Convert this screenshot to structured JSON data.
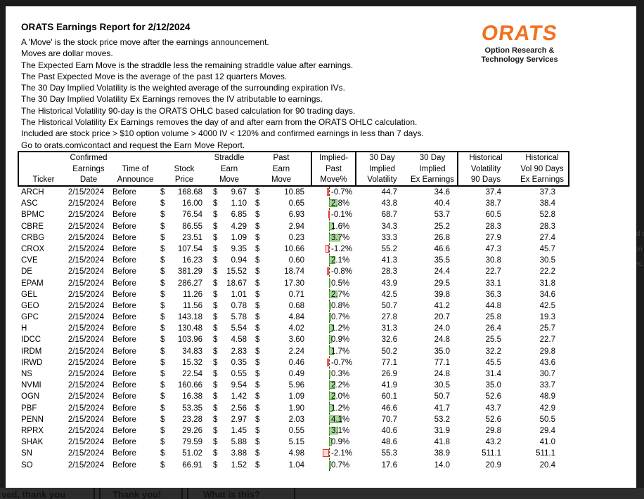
{
  "report": {
    "title": "ORATS Earnings Report for 2/12/2024",
    "intro_lines": [
      "A 'Move' is the stock price move after the earnings announcement.",
      "Moves are dollar moves.",
      "The Expected Earn Move is the straddle less the remaining straddle value after earnings.",
      "The Past Expected Move is the average of the past 12 quarters Moves.",
      "The 30 Day Implied Volatility is the weighted average of the surrounding expiration IVs.",
      "The 30 Day Implied Volatility Ex Earnings removes the IV atributable to earnings.",
      "The Historical Volatility 90-day is the ORATS OHLC based calculation for 90 trading days.",
      "The Historical Volatility Ex Earnings removes the day of and after earn from the ORATS OHLC calculation.",
      "Included are stock price > $10 option volume > 4000 IV < 120% and confirmed earnings in less than 7 days.",
      "Go to orats.com\\contact and request the Earn Move Report."
    ],
    "logo": {
      "text": "ORATS",
      "subtitle_line1": "Option Research &",
      "subtitle_line2": "Technology Services",
      "color": "#F2711F"
    }
  },
  "table": {
    "headers": [
      [
        "",
        "",
        "Ticker"
      ],
      [
        "Confirmed",
        "Earnings",
        "Date"
      ],
      [
        "",
        "Time of",
        "Announce"
      ],
      [
        "",
        "Stock",
        "Price"
      ],
      [
        "Straddle",
        "Earn",
        "Move"
      ],
      [
        "Past",
        "Earn",
        "Move"
      ],
      [
        "Implied-",
        "Past",
        "Move%"
      ],
      [
        "30 Day",
        "Implied",
        "Volatility"
      ],
      [
        "30 Day",
        "Implied",
        "Ex Earnings"
      ],
      [
        "Historical",
        "Volatility",
        "90 Days"
      ],
      [
        "Historical",
        "Vol 90 Days",
        "Ex Earnings"
      ]
    ],
    "dollar_sign": "$",
    "bar_colors": {
      "positive_fill": "#aad6a0",
      "positive_border": "#4ea72e",
      "negative_fill": "#fcd9d4",
      "negative_border": "#ee3124"
    },
    "rows": [
      {
        "ticker": "ARCH",
        "date": "2/15/2024",
        "announce": "Before",
        "stock": "168.68",
        "straddle": "9.67",
        "past": "10.85",
        "move_pct": -0.7,
        "move_label": "-0.7%",
        "iv30": "44.7",
        "iv30_ex": "34.6",
        "hv90": "37.4",
        "hv90_ex": "37.3"
      },
      {
        "ticker": "ASC",
        "date": "2/15/2024",
        "announce": "Before",
        "stock": "16.00",
        "straddle": "1.10",
        "past": "0.65",
        "move_pct": 2.8,
        "move_label": "2.8%",
        "iv30": "43.8",
        "iv30_ex": "40.4",
        "hv90": "38.7",
        "hv90_ex": "38.4"
      },
      {
        "ticker": "BPMC",
        "date": "2/15/2024",
        "announce": "Before",
        "stock": "76.54",
        "straddle": "6.85",
        "past": "6.93",
        "move_pct": -0.1,
        "move_label": "-0.1%",
        "iv30": "68.7",
        "iv30_ex": "53.7",
        "hv90": "60.5",
        "hv90_ex": "52.8"
      },
      {
        "ticker": "CBRE",
        "date": "2/15/2024",
        "announce": "Before",
        "stock": "86.55",
        "straddle": "4.29",
        "past": "2.94",
        "move_pct": 1.6,
        "move_label": "1.6%",
        "iv30": "34.3",
        "iv30_ex": "25.2",
        "hv90": "28.3",
        "hv90_ex": "28.3"
      },
      {
        "ticker": "CRBG",
        "date": "2/15/2024",
        "announce": "Before",
        "stock": "23.51",
        "straddle": "1.09",
        "past": "0.23",
        "move_pct": 3.7,
        "move_label": "3.7%",
        "iv30": "33.3",
        "iv30_ex": "26.8",
        "hv90": "27.9",
        "hv90_ex": "27.4"
      },
      {
        "ticker": "CROX",
        "date": "2/15/2024",
        "announce": "Before",
        "stock": "107.54",
        "straddle": "9.35",
        "past": "10.66",
        "move_pct": -1.2,
        "move_label": "-1.2%",
        "iv30": "55.2",
        "iv30_ex": "46.6",
        "hv90": "47.3",
        "hv90_ex": "45.7"
      },
      {
        "ticker": "CVE",
        "date": "2/15/2024",
        "announce": "Before",
        "stock": "16.23",
        "straddle": "0.94",
        "past": "0.60",
        "move_pct": 2.1,
        "move_label": "2.1%",
        "iv30": "41.3",
        "iv30_ex": "35.5",
        "hv90": "30.8",
        "hv90_ex": "30.5"
      },
      {
        "ticker": "DE",
        "date": "2/15/2024",
        "announce": "Before",
        "stock": "381.29",
        "straddle": "15.52",
        "past": "18.74",
        "move_pct": -0.8,
        "move_label": "-0.8%",
        "iv30": "28.3",
        "iv30_ex": "24.4",
        "hv90": "22.7",
        "hv90_ex": "22.2"
      },
      {
        "ticker": "EPAM",
        "date": "2/15/2024",
        "announce": "Before",
        "stock": "286.27",
        "straddle": "18.67",
        "past": "17.30",
        "move_pct": 0.5,
        "move_label": "0.5%",
        "iv30": "43.9",
        "iv30_ex": "29.5",
        "hv90": "33.1",
        "hv90_ex": "31.8"
      },
      {
        "ticker": "GEL",
        "date": "2/15/2024",
        "announce": "Before",
        "stock": "11.26",
        "straddle": "1.01",
        "past": "0.71",
        "move_pct": 2.7,
        "move_label": "2.7%",
        "iv30": "42.5",
        "iv30_ex": "39.8",
        "hv90": "36.3",
        "hv90_ex": "34.6"
      },
      {
        "ticker": "GEO",
        "date": "2/15/2024",
        "announce": "Before",
        "stock": "11.56",
        "straddle": "0.78",
        "past": "0.68",
        "move_pct": 0.8,
        "move_label": "0.8%",
        "iv30": "50.7",
        "iv30_ex": "41.2",
        "hv90": "44.8",
        "hv90_ex": "42.5"
      },
      {
        "ticker": "GPC",
        "date": "2/15/2024",
        "announce": "Before",
        "stock": "143.18",
        "straddle": "5.78",
        "past": "4.84",
        "move_pct": 0.7,
        "move_label": "0.7%",
        "iv30": "27.8",
        "iv30_ex": "20.7",
        "hv90": "25.8",
        "hv90_ex": "19.3"
      },
      {
        "ticker": "H",
        "date": "2/15/2024",
        "announce": "Before",
        "stock": "130.48",
        "straddle": "5.54",
        "past": "4.02",
        "move_pct": 1.2,
        "move_label": "1.2%",
        "iv30": "31.3",
        "iv30_ex": "24.0",
        "hv90": "26.4",
        "hv90_ex": "25.7"
      },
      {
        "ticker": "IDCC",
        "date": "2/15/2024",
        "announce": "Before",
        "stock": "103.96",
        "straddle": "4.58",
        "past": "3.60",
        "move_pct": 0.9,
        "move_label": "0.9%",
        "iv30": "32.6",
        "iv30_ex": "24.8",
        "hv90": "25.5",
        "hv90_ex": "22.7"
      },
      {
        "ticker": "IRDM",
        "date": "2/15/2024",
        "announce": "Before",
        "stock": "34.83",
        "straddle": "2.83",
        "past": "2.24",
        "move_pct": 1.7,
        "move_label": "1.7%",
        "iv30": "50.2",
        "iv30_ex": "35.0",
        "hv90": "32.2",
        "hv90_ex": "29.8"
      },
      {
        "ticker": "IRWD",
        "date": "2/15/2024",
        "announce": "Before",
        "stock": "15.32",
        "straddle": "0.35",
        "past": "0.46",
        "move_pct": -0.7,
        "move_label": "-0.7%",
        "iv30": "77.1",
        "iv30_ex": "77.1",
        "hv90": "45.5",
        "hv90_ex": "43.6"
      },
      {
        "ticker": "NS",
        "date": "2/15/2024",
        "announce": "Before",
        "stock": "22.54",
        "straddle": "0.55",
        "past": "0.49",
        "move_pct": 0.3,
        "move_label": "0.3%",
        "iv30": "26.9",
        "iv30_ex": "24.8",
        "hv90": "31.4",
        "hv90_ex": "30.7"
      },
      {
        "ticker": "NVMI",
        "date": "2/15/2024",
        "announce": "Before",
        "stock": "160.66",
        "straddle": "9.54",
        "past": "5.96",
        "move_pct": 2.2,
        "move_label": "2.2%",
        "iv30": "41.9",
        "iv30_ex": "30.5",
        "hv90": "35.0",
        "hv90_ex": "33.7"
      },
      {
        "ticker": "OGN",
        "date": "2/15/2024",
        "announce": "Before",
        "stock": "16.38",
        "straddle": "1.42",
        "past": "1.09",
        "move_pct": 2.0,
        "move_label": "2.0%",
        "iv30": "60.1",
        "iv30_ex": "50.7",
        "hv90": "52.6",
        "hv90_ex": "48.9"
      },
      {
        "ticker": "PBF",
        "date": "2/15/2024",
        "announce": "Before",
        "stock": "53.35",
        "straddle": "2.56",
        "past": "1.90",
        "move_pct": 1.2,
        "move_label": "1.2%",
        "iv30": "46.6",
        "iv30_ex": "41.7",
        "hv90": "43.7",
        "hv90_ex": "42.9"
      },
      {
        "ticker": "PENN",
        "date": "2/15/2024",
        "announce": "Before",
        "stock": "23.28",
        "straddle": "2.97",
        "past": "2.03",
        "move_pct": 4.1,
        "move_label": "4.1%",
        "iv30": "70.7",
        "iv30_ex": "53.2",
        "hv90": "52.6",
        "hv90_ex": "50.5"
      },
      {
        "ticker": "RPRX",
        "date": "2/15/2024",
        "announce": "Before",
        "stock": "29.26",
        "straddle": "1.45",
        "past": "0.55",
        "move_pct": 3.1,
        "move_label": "3.1%",
        "iv30": "40.6",
        "iv30_ex": "31.9",
        "hv90": "29.8",
        "hv90_ex": "29.4"
      },
      {
        "ticker": "SHAK",
        "date": "2/15/2024",
        "announce": "Before",
        "stock": "79.59",
        "straddle": "5.88",
        "past": "5.15",
        "move_pct": 0.9,
        "move_label": "0.9%",
        "iv30": "48.6",
        "iv30_ex": "41.8",
        "hv90": "43.2",
        "hv90_ex": "41.0"
      },
      {
        "ticker": "SN",
        "date": "2/15/2024",
        "announce": "Before",
        "stock": "51.02",
        "straddle": "3.88",
        "past": "4.98",
        "move_pct": -2.1,
        "move_label": "-2.1%",
        "iv30": "55.3",
        "iv30_ex": "38.9",
        "hv90": "511.1",
        "hv90_ex": "511.1"
      },
      {
        "ticker": "SO",
        "date": "2/15/2024",
        "announce": "Before",
        "stock": "66.91",
        "straddle": "1.52",
        "past": "1.04",
        "move_pct": 0.7,
        "move_label": "0.7%",
        "iv30": "17.6",
        "iv30_ex": "14.0",
        "hv90": "20.9",
        "hv90_ex": "20.4"
      }
    ]
  },
  "overlay": {
    "bottom_buttons": [
      "ved, thank you",
      "Thank you!",
      "What is this?"
    ],
    "right_fragments": [
      "d c",
      "co",
      "ec"
    ]
  }
}
